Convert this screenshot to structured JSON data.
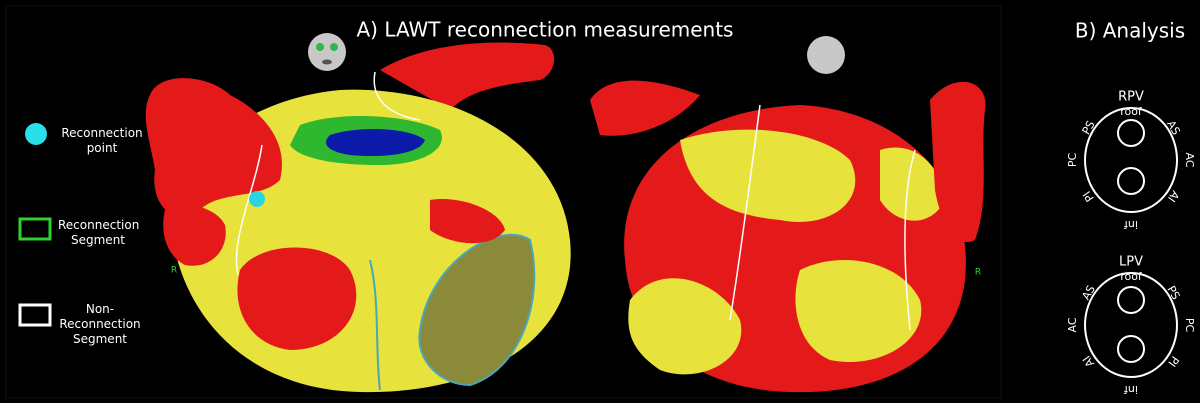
{
  "panel_a": {
    "title": "A) LAWT reconnection measurements",
    "legend": [
      "Reconnection point",
      "Reconnection Segment",
      "Non-Reconnection Segment"
    ],
    "orientation_labels": [
      "R",
      "R"
    ]
  },
  "panel_b": {
    "title": "B) Analysis",
    "diagrams": [
      {
        "vein": "RPV",
        "top": "roof",
        "bottom": "inf",
        "left": "PC",
        "right": "AC",
        "top_left": "PS",
        "top_right": "AS",
        "bottom_left": "PI",
        "bottom_right": "AI"
      },
      {
        "vein": "LPV",
        "top": "roof",
        "bottom": "inf",
        "left": "AC",
        "right": "PC",
        "top_left": "AS",
        "top_right": "PS",
        "bottom_left": "AI",
        "bottom_right": "PI"
      }
    ]
  }
}
